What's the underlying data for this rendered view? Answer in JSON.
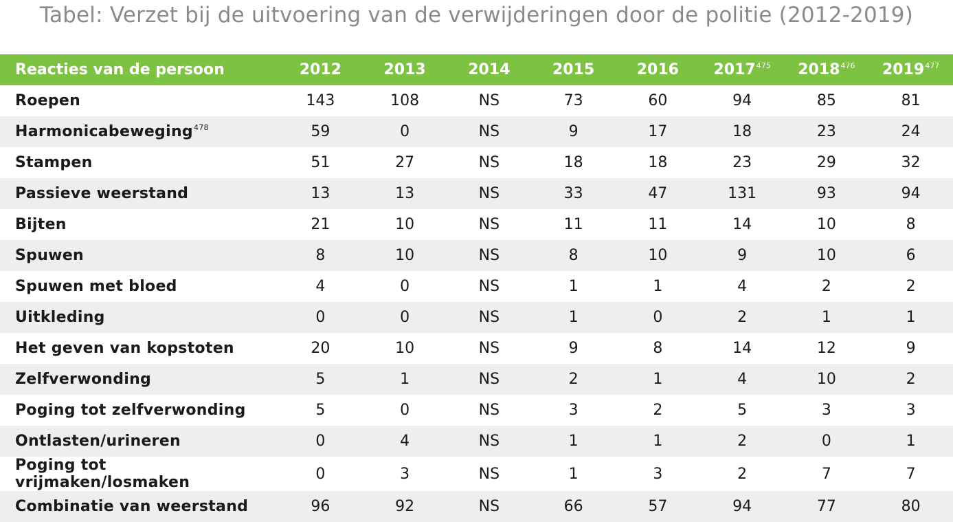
{
  "title": "Tabel: Verzet bij de uitvoering van de verwijderingen door de politie (2012-2019)",
  "table": {
    "header": {
      "label": "Reacties van de persoon",
      "years": [
        {
          "year": "2012",
          "note": ""
        },
        {
          "year": "2013",
          "note": ""
        },
        {
          "year": "2014",
          "note": ""
        },
        {
          "year": "2015",
          "note": ""
        },
        {
          "year": "2016",
          "note": ""
        },
        {
          "year": "2017",
          "note": "475"
        },
        {
          "year": "2018",
          "note": "476"
        },
        {
          "year": "2019",
          "note": "477"
        }
      ]
    },
    "rows": [
      {
        "label": "Roepen",
        "note": "",
        "values": [
          "143",
          "108",
          "NS",
          "73",
          "60",
          "94",
          "85",
          "81"
        ]
      },
      {
        "label": "Harmonicabeweging",
        "note": "478",
        "values": [
          "59",
          "0",
          "NS",
          "9",
          "17",
          "18",
          "23",
          "24"
        ]
      },
      {
        "label": "Stampen",
        "note": "",
        "values": [
          "51",
          "27",
          "NS",
          "18",
          "18",
          "23",
          "29",
          "32"
        ]
      },
      {
        "label": "Passieve weerstand",
        "note": "",
        "values": [
          "13",
          "13",
          "NS",
          "33",
          "47",
          "131",
          "93",
          "94"
        ]
      },
      {
        "label": "Bijten",
        "note": "",
        "values": [
          "21",
          "10",
          "NS",
          "11",
          "11",
          "14",
          "10",
          "8"
        ]
      },
      {
        "label": "Spuwen",
        "note": "",
        "values": [
          "8",
          "10",
          "NS",
          "8",
          "10",
          "9",
          "10",
          "6"
        ]
      },
      {
        "label": "Spuwen met bloed",
        "note": "",
        "values": [
          "4",
          "0",
          "NS",
          "1",
          "1",
          "4",
          "2",
          "2"
        ]
      },
      {
        "label": "Uitkleding",
        "note": "",
        "values": [
          "0",
          "0",
          "NS",
          "1",
          "0",
          "2",
          "1",
          "1"
        ]
      },
      {
        "label": "Het geven van kopstoten",
        "note": "",
        "values": [
          "20",
          "10",
          "NS",
          "9",
          "8",
          "14",
          "12",
          "9"
        ]
      },
      {
        "label": "Zelfverwonding",
        "note": "",
        "values": [
          "5",
          "1",
          "NS",
          "2",
          "1",
          "4",
          "10",
          "2"
        ]
      },
      {
        "label": "Poging tot zelfverwonding",
        "note": "",
        "values": [
          "5",
          "0",
          "NS",
          "3",
          "2",
          "5",
          "3",
          "3"
        ]
      },
      {
        "label": "Ontlasten/urineren",
        "note": "",
        "values": [
          "0",
          "4",
          "NS",
          "1",
          "1",
          "2",
          "0",
          "1"
        ]
      },
      {
        "label": "Poging tot vrijmaken/losmaken",
        "note": "",
        "values": [
          "0",
          "3",
          "NS",
          "1",
          "3",
          "2",
          "7",
          "7"
        ]
      },
      {
        "label": "Combinatie van weerstand",
        "note": "",
        "values": [
          "96",
          "92",
          "NS",
          "66",
          "57",
          "94",
          "77",
          "80"
        ]
      }
    ]
  }
}
